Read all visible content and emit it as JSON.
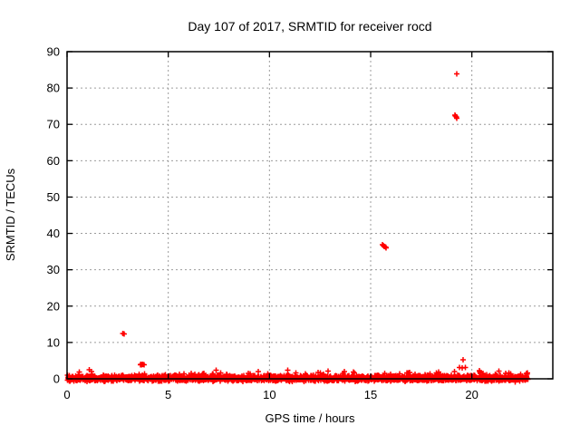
{
  "chart_data": {
    "type": "scatter",
    "title": "Day 107 of 2017, SRMTID for receiver rocd",
    "xlabel": "GPS time / hours",
    "ylabel": "SRMTID / TECUs",
    "xlim": [
      0,
      24
    ],
    "ylim": [
      0,
      90
    ],
    "x_ticks": [
      0,
      5,
      10,
      15,
      20
    ],
    "y_ticks": [
      0,
      10,
      20,
      30,
      40,
      50,
      60,
      70,
      80,
      90
    ],
    "grid": true,
    "grid_color": "#9c9c9c",
    "axis_color": "#000000",
    "background_color": "#ffffff",
    "marker": {
      "shape": "plus",
      "color": "#ff0000",
      "size": 7
    },
    "series": [
      {
        "name": "SRMTID",
        "color": "#ff0000",
        "outlier_points": [
          [
            2.76,
            12.45
          ],
          [
            2.83,
            12.3
          ],
          [
            3.62,
            3.9
          ],
          [
            3.66,
            4.05
          ],
          [
            3.7,
            3.85
          ],
          [
            3.74,
            3.95
          ],
          [
            3.81,
            3.9
          ],
          [
            15.58,
            36.9
          ],
          [
            15.63,
            36.6
          ],
          [
            15.68,
            36.45
          ],
          [
            15.73,
            36.25
          ],
          [
            15.77,
            36.05
          ],
          [
            19.16,
            72.6
          ],
          [
            19.19,
            72.3
          ],
          [
            19.23,
            72.0
          ],
          [
            19.26,
            71.7
          ],
          [
            19.26,
            83.9
          ],
          [
            19.56,
            5.2
          ],
          [
            19.38,
            3.15
          ],
          [
            19.52,
            3.0
          ],
          [
            19.68,
            3.1
          ]
        ],
        "baseline_band": {
          "description": "dense noise band of + markers hugging 0 TECUs across the whole day",
          "x_start": 0.02,
          "x_end": 22.79,
          "y_center": 0.15,
          "y_spread": 0.9,
          "spike_prob": 0.06,
          "spike_max": 0.9,
          "dip_prob": 0.04,
          "dip_max": 0.45,
          "count": 2200,
          "seed": 107
        }
      }
    ]
  }
}
